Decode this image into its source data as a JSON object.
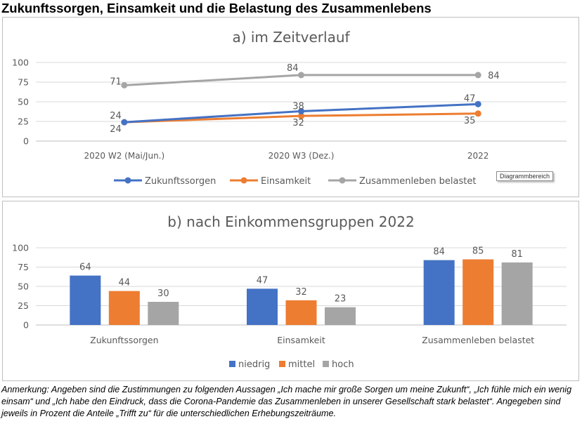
{
  "page_title": "Zukunftssorgen, Einsamkeit und die Belastung des Zusammenlebens",
  "tooltip_text": "Diagrammbereich",
  "note_text": "Anmerkung: Angeben sind die Zustimmungen zu folgenden Aussagen „Ich mache mir große Sorgen um meine Zukunft“, „Ich fühle mich ein wenig einsam“ und „Ich habe den Eindruck, dass die Corona-Pandemie das Zusammenleben in unserer Gesellschaft stark belastet“.  Angegeben sind jeweils in Prozent die Anteile „Trifft zu“ für die unterschiedlichen Erhebungszeiträume.",
  "chart_data": [
    {
      "type": "line",
      "title": "a) im Zeitverlauf",
      "categories": [
        "2020 W2 (Mai/Jun.)",
        "2020 W3 (Dez.)",
        "2022"
      ],
      "ylim": [
        0,
        100
      ],
      "yticks": [
        0,
        25,
        50,
        75,
        100
      ],
      "grid": true,
      "legend": "bottom",
      "series": [
        {
          "name": "Zukunftssorgen",
          "color": "#4472c4",
          "values": [
            24,
            38,
            47
          ]
        },
        {
          "name": "Einsamkeit",
          "color": "#ed7d31",
          "values": [
            24,
            32,
            35
          ]
        },
        {
          "name": "Zusammenleben belastet",
          "color": "#a5a5a5",
          "values": [
            71,
            84,
            84
          ]
        }
      ]
    },
    {
      "type": "bar",
      "title": "b) nach Einkommensgruppen 2022",
      "categories": [
        "Zukunftssorgen",
        "Einsamkeit",
        "Zusammenleben belastet"
      ],
      "ylim": [
        0,
        100
      ],
      "yticks": [
        0,
        25,
        50,
        75,
        100
      ],
      "grid": true,
      "legend": "bottom",
      "series": [
        {
          "name": "niedrig",
          "color": "#4472c4",
          "values": [
            64,
            47,
            84
          ]
        },
        {
          "name": "mittel",
          "color": "#ed7d31",
          "values": [
            44,
            32,
            85
          ]
        },
        {
          "name": "hoch",
          "color": "#a5a5a5",
          "values": [
            30,
            23,
            81
          ]
        }
      ]
    }
  ]
}
